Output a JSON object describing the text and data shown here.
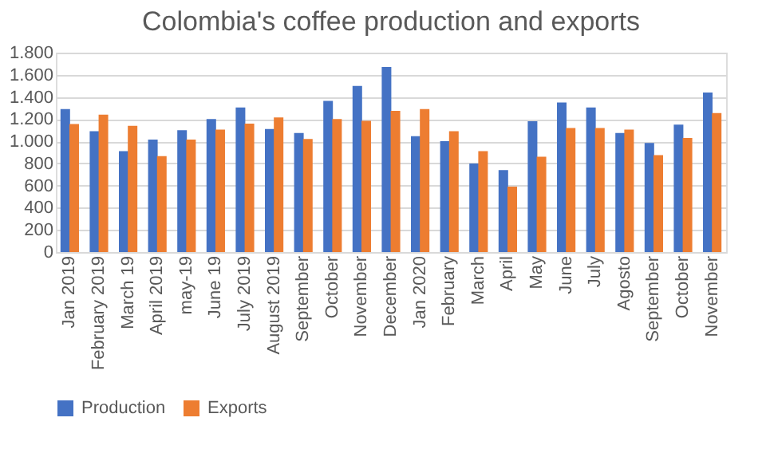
{
  "chart_data": {
    "type": "bar",
    "title": "Colombia's coffee production and exports",
    "categories": [
      "Jan 2019",
      "February 2019",
      "March 19",
      "April 2019",
      "may-19",
      "June 19",
      "July 2019",
      "August 2019",
      "September",
      "October",
      "November",
      "December",
      "Jan 2020",
      "February",
      "March",
      "April",
      "May",
      "June",
      "July",
      "Agosto",
      "September",
      "October",
      "November"
    ],
    "series": [
      {
        "name": "Production",
        "color": "#4472c4",
        "values": [
          1290,
          1090,
          910,
          1015,
          1100,
          1200,
          1305,
          1110,
          1075,
          1365,
          1500,
          1670,
          1045,
          1000,
          800,
          740,
          1180,
          1350,
          1305,
          1075,
          985,
          1150,
          1440
        ]
      },
      {
        "name": "Exports",
        "color": "#ed7d31",
        "values": [
          1155,
          1240,
          1140,
          865,
          1015,
          1105,
          1160,
          1215,
          1020,
          1200,
          1185,
          1275,
          1290,
          1090,
          910,
          590,
          860,
          1120,
          1120,
          1105,
          875,
          1030,
          1255
        ]
      }
    ],
    "ylim": [
      0,
      1800
    ],
    "yticks": [
      0,
      200,
      400,
      600,
      800,
      {
        "value": 1000,
        "label": "1.000"
      },
      {
        "value": 1200,
        "label": "1.200"
      },
      {
        "value": 1400,
        "label": "1.400"
      },
      {
        "value": 1600,
        "label": "1.600"
      },
      {
        "value": 1800,
        "label": "1.800"
      }
    ],
    "grid": "y",
    "legend": "bottom"
  }
}
